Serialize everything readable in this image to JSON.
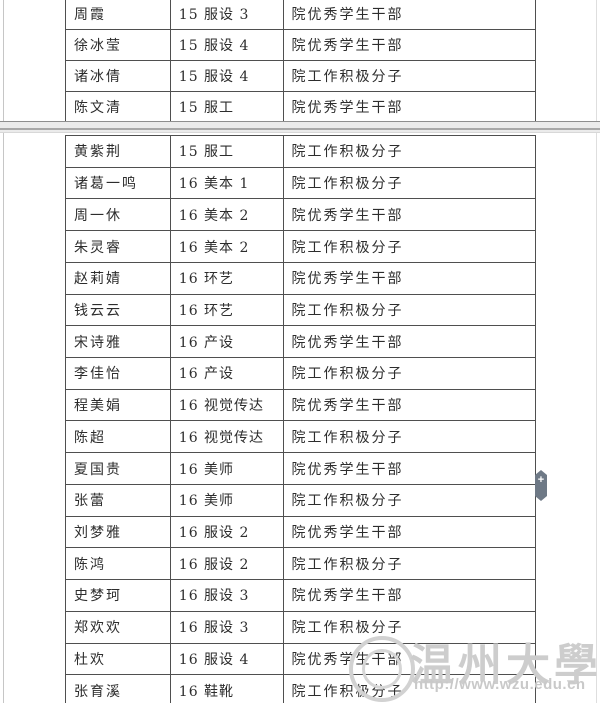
{
  "document": {
    "type": "two-page table document",
    "colors": {
      "table_border": "#4f4f4f",
      "text": "#2d2d2d",
      "page_break_band": "#ebebeb",
      "watermark": "#cdcdcd",
      "nav_handle": "#6e7986"
    }
  },
  "table": {
    "page1_rows": [
      [
        "周霞",
        "15 服设 3",
        "院优秀学生干部"
      ],
      [
        "徐冰莹",
        "15 服设 4",
        "院优秀学生干部"
      ],
      [
        "诸冰倩",
        "15 服设 4",
        "院工作积极分子"
      ],
      [
        "陈文清",
        "15 服工",
        "院优秀学生干部"
      ]
    ],
    "page2_rows": [
      [
        "黄紫荆",
        "15 服工",
        "院工作积极分子"
      ],
      [
        "诸葛一鸣",
        "16 美本 1",
        "院工作积极分子"
      ],
      [
        "周一休",
        "16 美本 2",
        "院优秀学生干部"
      ],
      [
        "朱灵睿",
        "16 美本 2",
        "院工作积极分子"
      ],
      [
        "赵莉婧",
        "16 环艺",
        "院优秀学生干部"
      ],
      [
        "钱云云",
        "16 环艺",
        "院工作积极分子"
      ],
      [
        "宋诗雅",
        "16 产设",
        "院优秀学生干部"
      ],
      [
        "李佳怡",
        "16 产设",
        "院工作积极分子"
      ],
      [
        "程美娟",
        "16 视觉传达",
        "院优秀学生干部"
      ],
      [
        "陈超",
        "16 视觉传达",
        "院工作积极分子"
      ],
      [
        "夏国贵",
        "16 美师",
        "院优秀学生干部"
      ],
      [
        "张蕾",
        "16 美师",
        "院工作积极分子"
      ],
      [
        "刘梦雅",
        "16 服设 2",
        "院优秀学生干部"
      ],
      [
        "陈鸿",
        "16 服设 2",
        "院工作积极分子"
      ],
      [
        "史梦珂",
        "16 服设 3",
        "院优秀学生干部"
      ],
      [
        "郑欢欢",
        "16 服设 3",
        "院工作积极分子"
      ],
      [
        "杜欢",
        "16 服设 4",
        "院优秀学生干部"
      ],
      [
        "张育溪",
        "16 鞋靴",
        "院工作积极分子"
      ]
    ]
  },
  "watermark": {
    "text": "温州大學",
    "url": "http://www.wzu.edu.cn",
    "logo": "wzu-seal-icon"
  },
  "nav_handle": {
    "glyph": "+"
  }
}
